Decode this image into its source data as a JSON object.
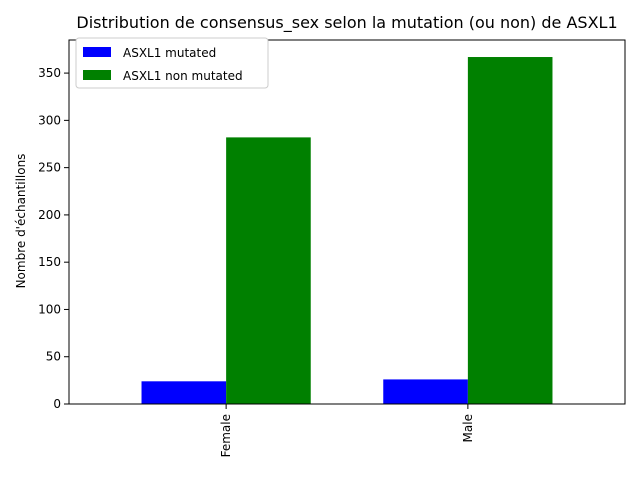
{
  "chart_data": {
    "type": "bar",
    "title": "Distribution de consensus_sex selon la mutation (ou non) de ASXL1",
    "xlabel": "",
    "ylabel": "Nombre d'échantillons",
    "categories": [
      "Female",
      "Male"
    ],
    "series": [
      {
        "name": "ASXL1 mutated",
        "values": [
          24,
          26
        ],
        "color": "#0000ff"
      },
      {
        "name": "ASXL1 non mutated",
        "values": [
          282,
          367
        ],
        "color": "#008000"
      }
    ],
    "ylim": [
      0,
      385
    ],
    "yticks": [
      0,
      50,
      100,
      150,
      200,
      250,
      300,
      350
    ],
    "grid": false,
    "legend_position": "top-left"
  }
}
